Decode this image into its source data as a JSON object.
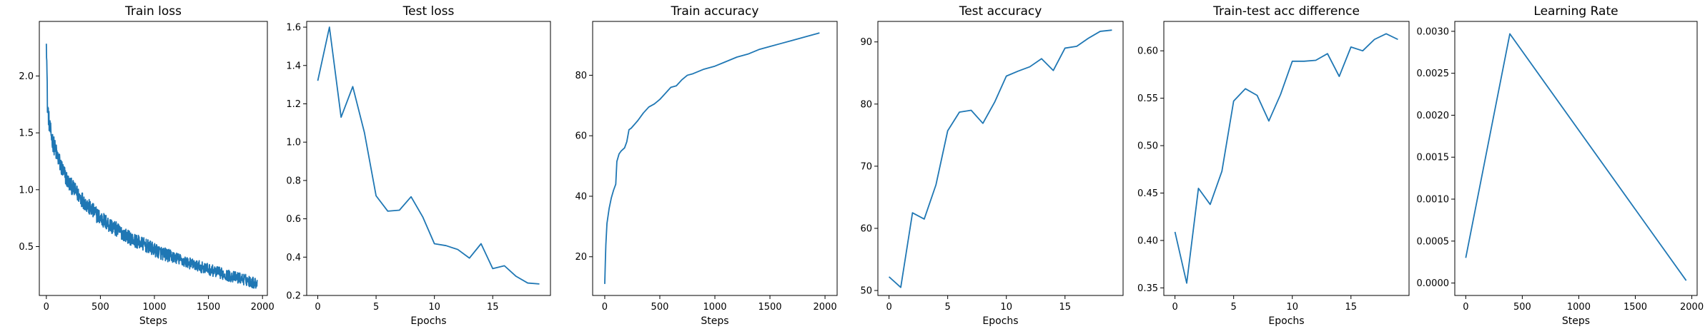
{
  "chart_data": [
    {
      "type": "line",
      "title": "Train loss",
      "xlabel": "Steps",
      "ylabel": "",
      "xlim": [
        -65,
        2045
      ],
      "ylim": [
        0.07,
        2.48
      ],
      "xticks": [
        0,
        500,
        1000,
        1500,
        2000
      ],
      "yticks": [
        0.5,
        1.0,
        1.5,
        2.0
      ],
      "ytick_labels": [
        "0.5",
        "1.0",
        "1.5",
        "2.0"
      ],
      "noisy": true,
      "x": [
        0,
        10,
        30,
        60,
        100,
        150,
        200,
        300,
        400,
        500,
        600,
        700,
        800,
        900,
        1000,
        1100,
        1200,
        1300,
        1400,
        1500,
        1600,
        1700,
        1800,
        1900,
        1950
      ],
      "y": [
        2.38,
        1.75,
        1.55,
        1.42,
        1.3,
        1.17,
        1.07,
        0.95,
        0.84,
        0.75,
        0.68,
        0.62,
        0.56,
        0.52,
        0.47,
        0.43,
        0.4,
        0.36,
        0.33,
        0.3,
        0.27,
        0.24,
        0.22,
        0.19,
        0.17
      ],
      "noise_amp": [
        0.1,
        0.09,
        0.08,
        0.08,
        0.08,
        0.08,
        0.07,
        0.07,
        0.07,
        0.07,
        0.07,
        0.06,
        0.06,
        0.06,
        0.06,
        0.06,
        0.05,
        0.05,
        0.05,
        0.05,
        0.05,
        0.05,
        0.05,
        0.05,
        0.05
      ]
    },
    {
      "type": "line",
      "title": "Test loss",
      "xlabel": "Epochs",
      "ylabel": "",
      "xlim": [
        -0.95,
        19.95
      ],
      "ylim": [
        0.2,
        1.63
      ],
      "xticks": [
        0,
        5,
        10,
        15
      ],
      "yticks": [
        0.2,
        0.4,
        0.6,
        0.8,
        1.0,
        1.2,
        1.4,
        1.6
      ],
      "ytick_labels": [
        "0.2",
        "0.4",
        "0.6",
        "0.8",
        "1.0",
        "1.2",
        "1.4",
        "1.6"
      ],
      "x": [
        0,
        1,
        2,
        3,
        4,
        5,
        6,
        7,
        8,
        9,
        10,
        11,
        12,
        13,
        14,
        15,
        16,
        17,
        18,
        19
      ],
      "y": [
        1.32,
        1.6,
        1.13,
        1.29,
        1.05,
        0.72,
        0.64,
        0.645,
        0.715,
        0.61,
        0.47,
        0.46,
        0.44,
        0.395,
        0.47,
        0.34,
        0.355,
        0.3,
        0.265,
        0.26
      ]
    },
    {
      "type": "line",
      "title": "Train accuracy",
      "xlabel": "Steps",
      "ylabel": "",
      "xlim": [
        -110,
        2110
      ],
      "ylim": [
        7.2,
        97.8
      ],
      "xticks": [
        0,
        500,
        1000,
        1500,
        2000
      ],
      "yticks": [
        20,
        40,
        60,
        80
      ],
      "ytick_labels": [
        "20",
        "40",
        "60",
        "80"
      ],
      "x": [
        0,
        5,
        10,
        20,
        40,
        60,
        80,
        100,
        110,
        130,
        150,
        180,
        200,
        220,
        240,
        300,
        350,
        400,
        450,
        500,
        600,
        650,
        700,
        750,
        800,
        900,
        1000,
        1100,
        1200,
        1300,
        1400,
        1500,
        1600,
        1700,
        1800,
        1900,
        1950
      ],
      "y": [
        11,
        18,
        24,
        31,
        36,
        39.5,
        42,
        44,
        51.5,
        54,
        55,
        56,
        58,
        62,
        62.5,
        65,
        67.5,
        69.5,
        70.5,
        72,
        76,
        76.5,
        78.5,
        80,
        80.5,
        82,
        83,
        84.5,
        86,
        87,
        88.5,
        89.5,
        90.5,
        91.5,
        92.5,
        93.5,
        94
      ]
    },
    {
      "type": "line",
      "title": "Test accuracy",
      "xlabel": "Epochs",
      "ylabel": "",
      "xlim": [
        -0.95,
        19.95
      ],
      "ylim": [
        49.2,
        93.3
      ],
      "xticks": [
        0,
        5,
        10,
        15
      ],
      "yticks": [
        50,
        60,
        70,
        80,
        90
      ],
      "ytick_labels": [
        "50",
        "60",
        "70",
        "80",
        "90"
      ],
      "x": [
        0,
        1,
        2,
        3,
        4,
        5,
        6,
        7,
        8,
        9,
        10,
        11,
        12,
        13,
        14,
        15,
        16,
        17,
        18,
        19
      ],
      "y": [
        52.2,
        50.5,
        62.5,
        61.5,
        67,
        75.7,
        78.7,
        79,
        76.9,
        80.3,
        84.5,
        85.3,
        86,
        87.3,
        85.4,
        89,
        89.3,
        90.6,
        91.7,
        91.9
      ]
    },
    {
      "type": "line",
      "title": "Train-test acc difference",
      "xlabel": "Epochs",
      "ylabel": "",
      "xlim": [
        -0.95,
        19.95
      ],
      "ylim": [
        0.342,
        0.631
      ],
      "xticks": [
        0,
        5,
        10,
        15
      ],
      "yticks": [
        0.35,
        0.4,
        0.45,
        0.5,
        0.55,
        0.6
      ],
      "ytick_labels": [
        "0.35",
        "0.40",
        "0.45",
        "0.50",
        "0.55",
        "0.60"
      ],
      "x": [
        0,
        1,
        2,
        3,
        4,
        5,
        6,
        7,
        8,
        9,
        10,
        11,
        12,
        13,
        14,
        15,
        16,
        17,
        18,
        19
      ],
      "y": [
        0.409,
        0.355,
        0.455,
        0.438,
        0.473,
        0.547,
        0.56,
        0.553,
        0.526,
        0.554,
        0.589,
        0.589,
        0.59,
        0.597,
        0.573,
        0.604,
        0.6,
        0.612,
        0.618,
        0.612
      ]
    },
    {
      "type": "line",
      "title": "Learning Rate",
      "xlabel": "Steps",
      "ylabel": "",
      "xlim": [
        -97,
        2047
      ],
      "ylim": [
        -0.000148,
        0.003118
      ],
      "xticks": [
        0,
        500,
        1000,
        1500,
        2000
      ],
      "yticks": [
        0,
        0.0005,
        0.001,
        0.0015,
        0.002,
        0.0025,
        0.003
      ],
      "ytick_labels": [
        "0.0000",
        "0.0005",
        "0.0010",
        "0.0015",
        "0.0020",
        "0.0025",
        "0.0030"
      ],
      "x": [
        0,
        390,
        1950
      ],
      "y": [
        0.0003,
        0.00297,
        3e-05
      ]
    }
  ]
}
